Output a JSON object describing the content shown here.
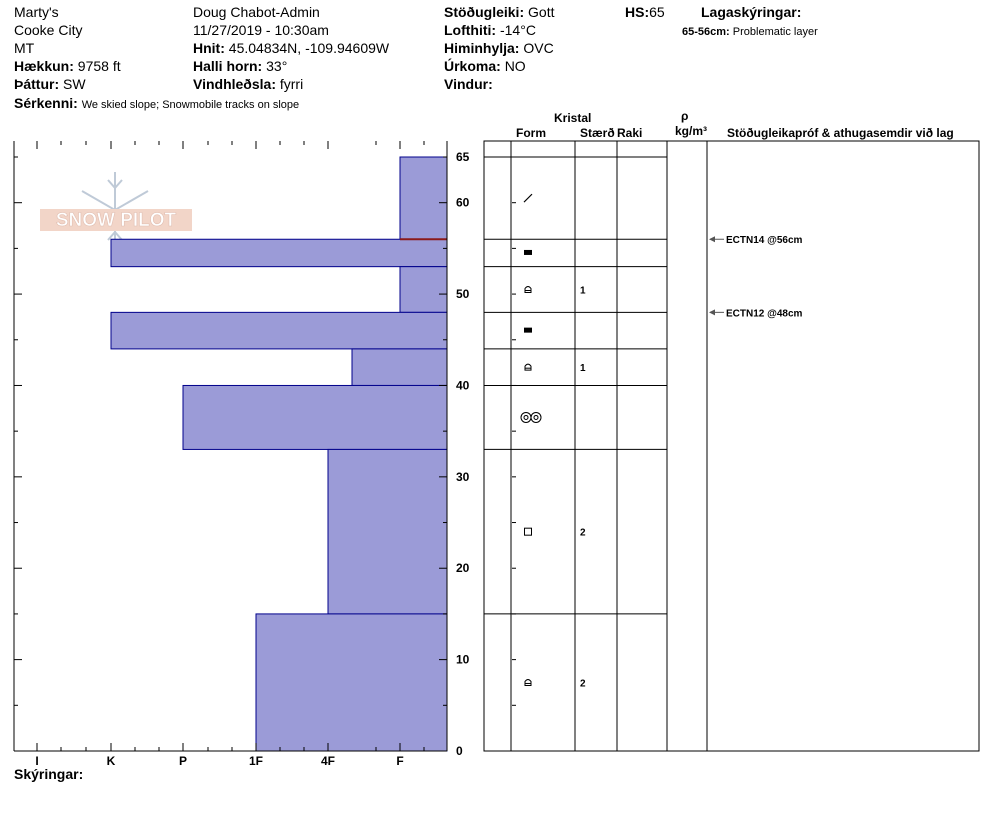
{
  "header": {
    "location1": "Marty's",
    "location2": "Cooke City",
    "state": "MT",
    "elevation_label": "Hækkun:",
    "elevation": "9758 ft",
    "aspect_label": "Þáttur:",
    "aspect": "SW",
    "observer": "Doug Chabot-Admin",
    "datetime": "11/27/2019 - 10:30am",
    "coords_label": "Hnit:",
    "coords": "45.04834N, -109.94609W",
    "slope_label": "Halli horn:",
    "slope": "33°",
    "wind_label": "Vindhleðsla:",
    "wind": "fyrri",
    "stability_label": "Stöðugleiki:",
    "stability": "Gott",
    "airtemp_label": "Lofthiti:",
    "airtemp": "-14°C",
    "sky_label": "Himinhylja:",
    "sky": "OVC",
    "precip_label": "Úrkoma:",
    "precip": "NO",
    "wind2_label": "Vindur:",
    "hs_label": "HS:",
    "hs": "65",
    "legend_label": "Lagaskýringar:",
    "legend_range": "65-56cm:",
    "legend_text": "Problematic layer",
    "features_label": "Sérkenni:",
    "features": "We skied slope; Snowmobile tracks on slope",
    "notes_label": "Skýringar:"
  },
  "columns": {
    "crystal": "Kristal",
    "form": "Form",
    "size": "Stærð",
    "moisture": "Raki",
    "rho": "ρ",
    "density_unit": "kg/m³",
    "tests": "Stöðugleikapróf & athugasemdir við lag"
  },
  "watermark": "SNOW PILOT",
  "colors": {
    "fill": "#9b9bd7",
    "border": "#00008b",
    "problem": "#8b1a1a"
  },
  "chart_data": {
    "type": "bar",
    "orientation": "horizontal",
    "x_categories": [
      "I",
      "K",
      "P",
      "1F",
      "4F",
      "F"
    ],
    "ylim": [
      0,
      65
    ],
    "y_ticks": [
      0,
      10,
      20,
      30,
      40,
      50,
      60,
      65
    ],
    "layers": [
      {
        "top": 65,
        "bottom": 56,
        "hardness": "F",
        "form_icon": "slash",
        "size": ""
      },
      {
        "top": 56,
        "bottom": 53,
        "hardness": "K",
        "form_icon": "square-filled",
        "size": ""
      },
      {
        "top": 53,
        "bottom": 48,
        "hardness": "F",
        "form_icon": "cup",
        "size": "1"
      },
      {
        "top": 48,
        "bottom": 44,
        "hardness": "K",
        "form_icon": "square-filled",
        "size": ""
      },
      {
        "top": 44,
        "bottom": 40,
        "hardness": "4F-",
        "form_icon": "cup",
        "size": "1"
      },
      {
        "top": 40,
        "bottom": 33,
        "hardness": "P",
        "form_icon": "double-ring",
        "size": ""
      },
      {
        "top": 33,
        "bottom": 15,
        "hardness": "4F",
        "form_icon": "square",
        "size": "2"
      },
      {
        "top": 15,
        "bottom": 0,
        "hardness": "1F",
        "form_icon": "cup",
        "size": "2"
      }
    ],
    "problem_depth": 56,
    "tests": [
      {
        "depth": 56,
        "text": "ECTN14 @56cm"
      },
      {
        "depth": 48,
        "text": "ECTN12 @48cm"
      }
    ]
  }
}
